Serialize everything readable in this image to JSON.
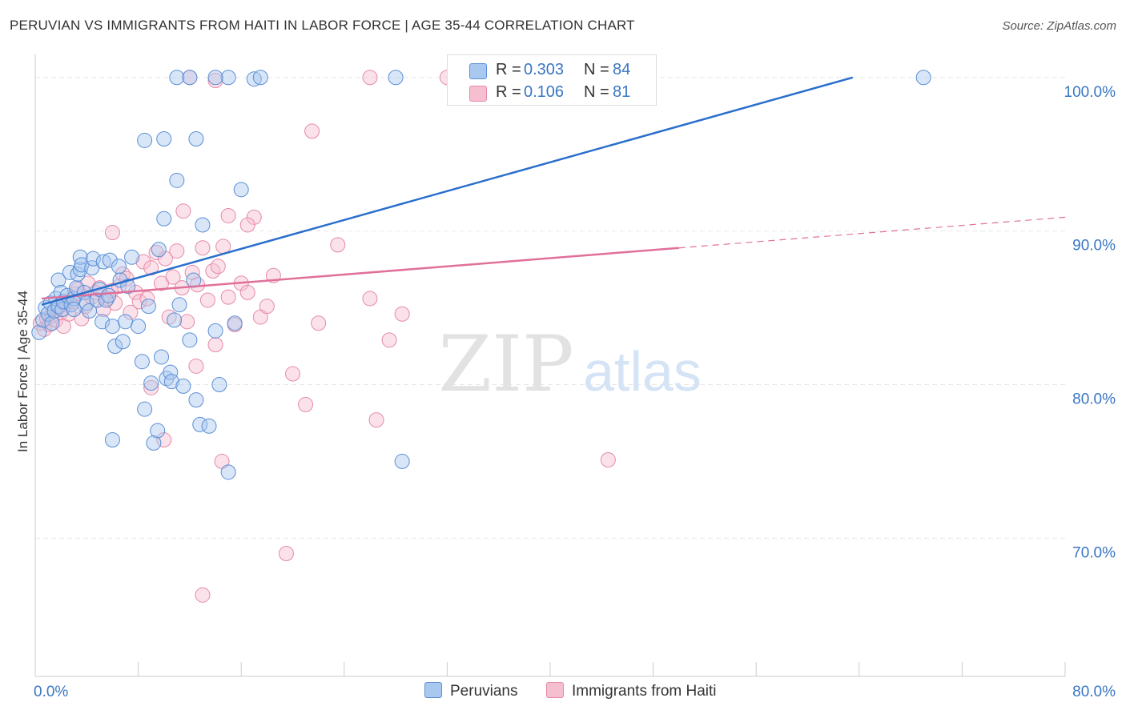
{
  "header": {
    "title": "PERUVIAN VS IMMIGRANTS FROM HAITI IN LABOR FORCE | AGE 35-44 CORRELATION CHART",
    "source": "Source: ZipAtlas.com"
  },
  "watermark": {
    "zip": "ZIP",
    "atlas": "atlas"
  },
  "colors": {
    "blue_fill": "#a9c8ef",
    "blue_stroke": "#5b8fd6",
    "blue_line": "#2a6fcc",
    "pink_fill": "#f6bfd0",
    "pink_stroke": "#e58aa8",
    "pink_line": "#e0709a",
    "tick_label": "#3a76c4",
    "grid": "#e6e6e6"
  },
  "legend": {
    "series": [
      {
        "r_label": "R =",
        "r_value": "0.303",
        "n_label": "N =",
        "n_value": "84"
      },
      {
        "r_label": "R =",
        "r_value": "0.106",
        "n_label": "N =",
        "n_value": "81"
      }
    ]
  },
  "bottom_legend": [
    "Peruvians",
    "Immigrants from Haiti"
  ],
  "chart_data": {
    "type": "scatter",
    "title": "PERUVIAN VS IMMIGRANTS FROM HAITI IN LABOR FORCE | AGE 35-44 CORRELATION CHART",
    "xlabel": "",
    "ylabel": "In Labor Force | Age 35-44",
    "xlim": [
      0,
      80
    ],
    "ylim": [
      61,
      101.5
    ],
    "x_tick_labels": [
      {
        "value": 0,
        "label": "0.0%"
      },
      {
        "value": 80,
        "label": "80.0%"
      }
    ],
    "y_tick_labels": [
      {
        "value": 100,
        "label": "100.0%"
      },
      {
        "value": 90,
        "label": "90.0%"
      },
      {
        "value": 80,
        "label": "80.0%"
      },
      {
        "value": 70,
        "label": "70.0%"
      }
    ],
    "series": [
      {
        "name": "Peruvians",
        "r": 0.303,
        "n": 84,
        "trend": {
          "x0": 0.5,
          "y0": 85.2,
          "x1": 63.5,
          "y1": 100
        },
        "points": [
          [
            0.3,
            83.4
          ],
          [
            0.6,
            84.2
          ],
          [
            0.8,
            85.0
          ],
          [
            1.0,
            84.6
          ],
          [
            1.2,
            85.3
          ],
          [
            1.3,
            84.0
          ],
          [
            1.5,
            84.8
          ],
          [
            1.6,
            85.6
          ],
          [
            1.8,
            86.8
          ],
          [
            1.8,
            85.1
          ],
          [
            2.0,
            86.0
          ],
          [
            2.1,
            84.9
          ],
          [
            2.2,
            85.4
          ],
          [
            2.5,
            85.8
          ],
          [
            2.7,
            87.3
          ],
          [
            2.8,
            85.2
          ],
          [
            3.0,
            85.6
          ],
          [
            3.0,
            84.9
          ],
          [
            3.2,
            86.3
          ],
          [
            3.3,
            87.2
          ],
          [
            3.5,
            87.5
          ],
          [
            3.5,
            88.3
          ],
          [
            3.6,
            87.8
          ],
          [
            3.8,
            86.0
          ],
          [
            4.0,
            85.3
          ],
          [
            4.2,
            84.8
          ],
          [
            4.4,
            87.6
          ],
          [
            4.5,
            88.2
          ],
          [
            4.8,
            85.5
          ],
          [
            5.0,
            86.2
          ],
          [
            5.2,
            84.1
          ],
          [
            5.3,
            88.0
          ],
          [
            5.5,
            85.5
          ],
          [
            5.7,
            85.8
          ],
          [
            5.8,
            88.1
          ],
          [
            6.0,
            83.8
          ],
          [
            6.2,
            82.5
          ],
          [
            6.5,
            87.7
          ],
          [
            6.6,
            86.8
          ],
          [
            6.8,
            82.8
          ],
          [
            7.0,
            84.1
          ],
          [
            7.2,
            86.4
          ],
          [
            7.5,
            88.3
          ],
          [
            8.0,
            83.8
          ],
          [
            8.3,
            81.5
          ],
          [
            8.5,
            78.4
          ],
          [
            8.8,
            85.1
          ],
          [
            9.0,
            80.1
          ],
          [
            9.2,
            76.2
          ],
          [
            9.5,
            77.0
          ],
          [
            9.6,
            88.8
          ],
          [
            9.8,
            81.8
          ],
          [
            10.0,
            90.8
          ],
          [
            10.2,
            80.4
          ],
          [
            10.5,
            80.8
          ],
          [
            10.6,
            80.2
          ],
          [
            10.8,
            84.2
          ],
          [
            11.0,
            93.3
          ],
          [
            11.2,
            85.2
          ],
          [
            11.5,
            79.9
          ],
          [
            12.0,
            82.9
          ],
          [
            12.3,
            86.8
          ],
          [
            12.5,
            79.0
          ],
          [
            12.8,
            77.4
          ],
          [
            13.0,
            90.4
          ],
          [
            13.5,
            77.3
          ],
          [
            14.0,
            83.5
          ],
          [
            14.3,
            80.0
          ],
          [
            15.0,
            74.3
          ],
          [
            15.5,
            84.0
          ],
          [
            16.0,
            92.7
          ],
          [
            17.0,
            99.9
          ],
          [
            8.5,
            95.9
          ],
          [
            11.0,
            100
          ],
          [
            12.5,
            96.0
          ],
          [
            12.0,
            100
          ],
          [
            15.0,
            100
          ],
          [
            17.5,
            100
          ],
          [
            10.0,
            96.0
          ],
          [
            14.0,
            100
          ],
          [
            28.0,
            100
          ],
          [
            28.5,
            75.0
          ],
          [
            69.0,
            100
          ],
          [
            6.0,
            76.4
          ]
        ]
      },
      {
        "name": "Immigrants from Haiti",
        "r": 0.106,
        "n": 81,
        "trend": {
          "x0": 0.5,
          "y0": 85.6,
          "x1": 50,
          "y1": 88.9
        },
        "trend_dashed": {
          "x0": 50,
          "y0": 88.9,
          "x1": 80,
          "y1": 90.9
        },
        "points": [
          [
            0.4,
            84.0
          ],
          [
            0.7,
            83.6
          ],
          [
            0.9,
            84.3
          ],
          [
            1.1,
            83.9
          ],
          [
            1.3,
            84.5
          ],
          [
            1.6,
            84.2
          ],
          [
            1.8,
            85.0
          ],
          [
            2.0,
            84.7
          ],
          [
            2.2,
            83.8
          ],
          [
            2.4,
            85.2
          ],
          [
            2.6,
            84.6
          ],
          [
            2.9,
            85.4
          ],
          [
            3.1,
            85.9
          ],
          [
            3.3,
            86.2
          ],
          [
            3.6,
            84.3
          ],
          [
            3.9,
            85.1
          ],
          [
            4.1,
            86.6
          ],
          [
            4.4,
            85.7
          ],
          [
            4.7,
            86.0
          ],
          [
            5.0,
            86.3
          ],
          [
            5.3,
            84.9
          ],
          [
            5.6,
            85.6
          ],
          [
            5.9,
            86.1
          ],
          [
            6.2,
            85.3
          ],
          [
            6.5,
            86.4
          ],
          [
            6.8,
            87.2
          ],
          [
            7.1,
            86.9
          ],
          [
            7.4,
            84.7
          ],
          [
            7.8,
            86.0
          ],
          [
            8.1,
            85.4
          ],
          [
            8.4,
            88.0
          ],
          [
            8.7,
            85.6
          ],
          [
            9.0,
            87.6
          ],
          [
            9.4,
            88.6
          ],
          [
            9.8,
            86.6
          ],
          [
            10.1,
            88.2
          ],
          [
            10.4,
            84.4
          ],
          [
            10.7,
            87.0
          ],
          [
            11.0,
            88.7
          ],
          [
            11.4,
            86.3
          ],
          [
            11.8,
            84.1
          ],
          [
            12.2,
            87.3
          ],
          [
            12.6,
            86.5
          ],
          [
            13.0,
            88.9
          ],
          [
            13.4,
            85.5
          ],
          [
            13.8,
            87.4
          ],
          [
            14.2,
            87.7
          ],
          [
            14.6,
            89.0
          ],
          [
            15.0,
            85.7
          ],
          [
            15.5,
            83.9
          ],
          [
            16.0,
            86.6
          ],
          [
            16.5,
            86.0
          ],
          [
            17.0,
            90.9
          ],
          [
            17.5,
            84.4
          ],
          [
            18.0,
            85.1
          ],
          [
            6.0,
            89.9
          ],
          [
            9.0,
            79.8
          ],
          [
            11.5,
            91.3
          ],
          [
            15.0,
            91.0
          ],
          [
            16.5,
            90.4
          ],
          [
            18.5,
            87.1
          ],
          [
            20.0,
            80.7
          ],
          [
            21.0,
            78.7
          ],
          [
            21.5,
            96.5
          ],
          [
            22.0,
            84.0
          ],
          [
            23.5,
            89.1
          ],
          [
            26.0,
            85.6
          ],
          [
            26.5,
            77.7
          ],
          [
            27.5,
            82.9
          ],
          [
            28.5,
            84.6
          ],
          [
            44.5,
            75.1
          ],
          [
            19.5,
            69.0
          ],
          [
            13.0,
            66.3
          ],
          [
            14.5,
            75.0
          ],
          [
            14.0,
            82.6
          ],
          [
            12.5,
            81.2
          ],
          [
            10.0,
            76.4
          ],
          [
            26.0,
            100
          ],
          [
            32.0,
            100
          ],
          [
            12.0,
            100
          ],
          [
            14.0,
            99.8
          ]
        ]
      }
    ]
  }
}
